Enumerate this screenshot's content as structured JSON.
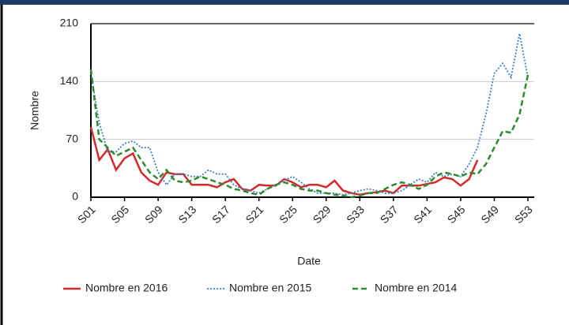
{
  "chart_data": {
    "type": "line",
    "x_label": "Date",
    "y_label": "Nombre",
    "categories": [
      "S01",
      null,
      null,
      null,
      "S05",
      null,
      null,
      null,
      "S09",
      null,
      null,
      null,
      "S13",
      null,
      null,
      null,
      "S17",
      null,
      null,
      null,
      "S21",
      null,
      null,
      null,
      "S25",
      null,
      null,
      null,
      "S29",
      null,
      null,
      null,
      "S33",
      null,
      null,
      null,
      "S37",
      null,
      null,
      null,
      "S41",
      null,
      null,
      null,
      "S45",
      null,
      null,
      null,
      "S49",
      null,
      null,
      null,
      "S53"
    ],
    "ylim": [
      0,
      210
    ],
    "yticks": [
      0,
      70,
      140,
      210
    ],
    "grid": true,
    "legend": "bottom",
    "series": [
      {
        "name": "Nombre en 2016",
        "color": "#d42a2a",
        "style": "solid",
        "values": [
          85,
          45,
          58,
          33,
          47,
          53,
          30,
          20,
          15,
          30,
          28,
          28,
          15,
          15,
          15,
          12,
          18,
          22,
          10,
          8,
          15,
          14,
          14,
          22,
          18,
          12,
          15,
          15,
          12,
          20,
          8,
          5,
          3,
          5,
          6,
          8,
          5,
          14,
          14,
          14,
          16,
          18,
          24,
          22,
          14,
          22,
          45,
          null,
          null,
          null,
          null,
          null,
          null
        ]
      },
      {
        "name": "Nombre en 2015",
        "color": "#3a7fd0",
        "style": "dotted",
        "values": [
          150,
          90,
          55,
          55,
          65,
          68,
          60,
          60,
          30,
          15,
          28,
          28,
          25,
          25,
          33,
          28,
          28,
          15,
          10,
          8,
          5,
          10,
          15,
          20,
          25,
          18,
          10,
          5,
          5,
          5,
          3,
          5,
          8,
          10,
          8,
          5,
          5,
          8,
          15,
          22,
          18,
          30,
          25,
          28,
          25,
          40,
          60,
          100,
          150,
          162,
          145,
          198,
          145
        ]
      },
      {
        "name": "Nombre en 2014",
        "color": "#2e8b2e",
        "style": "dashed",
        "values": [
          155,
          70,
          60,
          50,
          55,
          60,
          45,
          30,
          22,
          33,
          20,
          18,
          20,
          25,
          22,
          18,
          15,
          10,
          8,
          5,
          3,
          10,
          15,
          18,
          15,
          10,
          8,
          8,
          5,
          3,
          2,
          0,
          2,
          5,
          5,
          10,
          15,
          18,
          15,
          10,
          15,
          25,
          30,
          28,
          25,
          30,
          28,
          40,
          60,
          80,
          78,
          100,
          148
        ]
      }
    ]
  }
}
